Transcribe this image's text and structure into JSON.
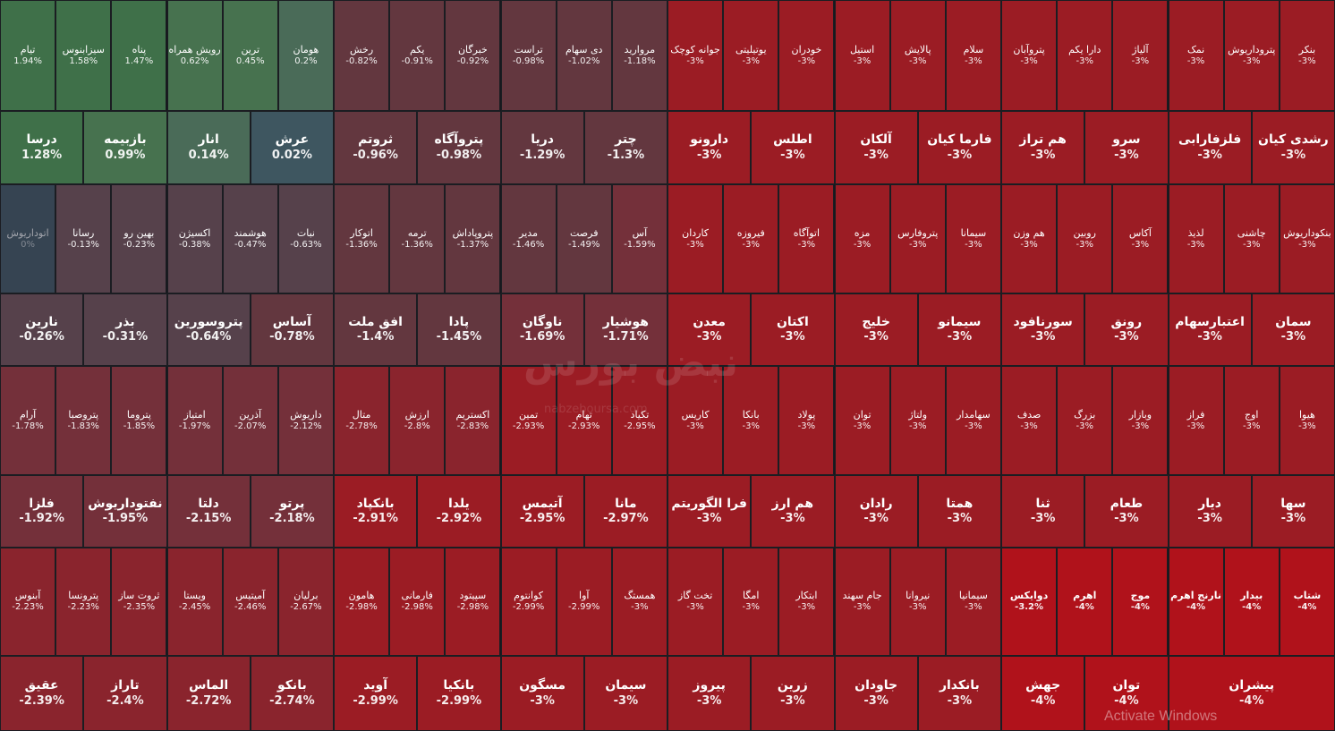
{
  "palette": {
    "gain_strong": "#3f7049",
    "gain_mid": "#47724f",
    "gain_weak": "#4a6b58",
    "gain_flat": "#3e5660",
    "flat": "#364452",
    "loss_light": "#56414b",
    "loss_mild": "#63373f",
    "loss_mid": "#74303a",
    "loss_deep": "#8a242d",
    "loss_max": "#9b1c24",
    "loss_extreme": "#b0121b",
    "text_light": "#ffffff",
    "text_dim": "#a0a3ab"
  },
  "watermark": {
    "brand": "نبض بورس",
    "site": "nabzeboursa.com"
  },
  "os_notice": "Activate Windows",
  "rows": [
    {
      "size": "sm",
      "tiles": [
        {
          "name": "بنکر",
          "pct": "-3%"
        },
        {
          "name": "پتروداریوش",
          "pct": "-3%"
        },
        {
          "name": "نمک",
          "pct": "-3%"
        },
        {
          "name": "آلیاژ",
          "pct": "-3%"
        },
        {
          "name": "دارا یکم",
          "pct": "-3%"
        },
        {
          "name": "پتروآبان",
          "pct": "-3%"
        },
        {
          "name": "سلام",
          "pct": "-3%"
        },
        {
          "name": "پالایش",
          "pct": "-3%"
        },
        {
          "name": "استیل",
          "pct": "-3%"
        },
        {
          "name": "خودران",
          "pct": "-3%"
        },
        {
          "name": "یوتیلیتی",
          "pct": "-3%"
        },
        {
          "name": "جوانه کوچک",
          "pct": "-3%"
        },
        {
          "name": "مرواريد",
          "pct": "-1.18%"
        },
        {
          "name": "دی سهام",
          "pct": "-1.02%"
        },
        {
          "name": "تراست",
          "pct": "-0.98%"
        },
        {
          "name": "خبرگان",
          "pct": "-0.92%"
        },
        {
          "name": "یکم",
          "pct": "-0.91%"
        },
        {
          "name": "رخش",
          "pct": "-0.82%"
        },
        {
          "name": "هومان",
          "pct": "0.2%"
        },
        {
          "name": "ترین",
          "pct": "0.45%"
        },
        {
          "name": "رویش همراه",
          "pct": "0.62%"
        },
        {
          "name": "پناه",
          "pct": "1.47%"
        },
        {
          "name": "سیزابنوس",
          "pct": "1.58%"
        },
        {
          "name": "تیام",
          "pct": "1.94%"
        }
      ]
    },
    {
      "size": "lg",
      "tiles": [
        {
          "name": "رشدی کیان",
          "pct": "-3%"
        },
        {
          "name": "فلزفارابی",
          "pct": "-3%"
        },
        {
          "name": "سرو",
          "pct": "-3%"
        },
        {
          "name": "هم تراز",
          "pct": "-3%"
        },
        {
          "name": "فارما کیان",
          "pct": "-3%"
        },
        {
          "name": "آلکان",
          "pct": "-3%"
        },
        {
          "name": "اطلس",
          "pct": "-3%"
        },
        {
          "name": "دارونو",
          "pct": "-3%"
        },
        {
          "name": "چتر",
          "pct": "-1.3%"
        },
        {
          "name": "دریا",
          "pct": "-1.29%"
        },
        {
          "name": "پتروآگاه",
          "pct": "-0.98%"
        },
        {
          "name": "ثروتم",
          "pct": "-0.96%"
        },
        {
          "name": "عرش",
          "pct": "0.02%"
        },
        {
          "name": "انار",
          "pct": "0.14%"
        },
        {
          "name": "بازبیمه",
          "pct": "0.99%"
        },
        {
          "name": "درسا",
          "pct": "1.28%"
        }
      ]
    },
    {
      "size": "sm",
      "tiles": [
        {
          "name": "بنکوداریوش",
          "pct": "-3%"
        },
        {
          "name": "چاشنی",
          "pct": "-3%"
        },
        {
          "name": "لذیذ",
          "pct": "-3%"
        },
        {
          "name": "آکاس",
          "pct": "-3%"
        },
        {
          "name": "روبین",
          "pct": "-3%"
        },
        {
          "name": "هم وزن",
          "pct": "-3%"
        },
        {
          "name": "سیمانا",
          "pct": "-3%"
        },
        {
          "name": "پتروفارس",
          "pct": "-3%"
        },
        {
          "name": "مزه",
          "pct": "-3%"
        },
        {
          "name": "اتوآگاه",
          "pct": "-3%"
        },
        {
          "name": "فیروزه",
          "pct": "-3%"
        },
        {
          "name": "کاردان",
          "pct": "-3%"
        },
        {
          "name": "آس",
          "pct": "-1.59%"
        },
        {
          "name": "فرصت",
          "pct": "-1.49%"
        },
        {
          "name": "مدیر",
          "pct": "-1.46%"
        },
        {
          "name": "پتروپاداش",
          "pct": "-1.37%"
        },
        {
          "name": "ترمه",
          "pct": "-1.36%"
        },
        {
          "name": "اتوکار",
          "pct": "-1.36%"
        },
        {
          "name": "نبات",
          "pct": "-0.63%"
        },
        {
          "name": "هوشمند",
          "pct": "-0.47%"
        },
        {
          "name": "اکسیژن",
          "pct": "-0.38%"
        },
        {
          "name": "بهین رو",
          "pct": "-0.23%"
        },
        {
          "name": "رسانا",
          "pct": "-0.13%"
        },
        {
          "name": "اتوداریوش",
          "pct": "0%"
        }
      ]
    },
    {
      "size": "lg",
      "tiles": [
        {
          "name": "سمان",
          "pct": "-3%"
        },
        {
          "name": "اعتبارسهام",
          "pct": "-3%"
        },
        {
          "name": "رونق",
          "pct": "-3%"
        },
        {
          "name": "سورنافود",
          "pct": "-3%"
        },
        {
          "name": "سیمانو",
          "pct": "-3%"
        },
        {
          "name": "خلیج",
          "pct": "-3%"
        },
        {
          "name": "اکتان",
          "pct": "-3%"
        },
        {
          "name": "معدن",
          "pct": "-3%"
        },
        {
          "name": "هوشیار",
          "pct": "-1.71%"
        },
        {
          "name": "ناوگان",
          "pct": "-1.69%"
        },
        {
          "name": "پادا",
          "pct": "-1.45%"
        },
        {
          "name": "افق ملت",
          "pct": "-1.4%"
        },
        {
          "name": "آساس",
          "pct": "-0.78%"
        },
        {
          "name": "پتروسورین",
          "pct": "-0.64%"
        },
        {
          "name": "بذر",
          "pct": "-0.31%"
        },
        {
          "name": "نارین",
          "pct": "-0.26%"
        }
      ]
    },
    {
      "size": "sm",
      "tiles": [
        {
          "name": "هیوا",
          "pct": "-3%"
        },
        {
          "name": "اوج",
          "pct": "-3%"
        },
        {
          "name": "فراز",
          "pct": "-3%"
        },
        {
          "name": "وبازار",
          "pct": "-3%"
        },
        {
          "name": "بزرگ",
          "pct": "-3%"
        },
        {
          "name": "صدف",
          "pct": "-3%"
        },
        {
          "name": "سهامدار",
          "pct": "-3%"
        },
        {
          "name": "ولتاژ",
          "pct": "-3%"
        },
        {
          "name": "توان",
          "pct": "-3%"
        },
        {
          "name": "پولاد",
          "pct": "-3%"
        },
        {
          "name": "بانکا",
          "pct": "-3%"
        },
        {
          "name": "کاریس",
          "pct": "-3%"
        },
        {
          "name": "تکیاد",
          "pct": "-2.95%"
        },
        {
          "name": "تهام",
          "pct": "-2.93%"
        },
        {
          "name": "تمین",
          "pct": "-2.93%"
        },
        {
          "name": "اکستریم",
          "pct": "-2.83%"
        },
        {
          "name": "ارزش",
          "pct": "-2.8%"
        },
        {
          "name": "متال",
          "pct": "-2.78%"
        },
        {
          "name": "داریوش",
          "pct": "-2.12%"
        },
        {
          "name": "آذرین",
          "pct": "-2.07%"
        },
        {
          "name": "امتیاز",
          "pct": "-1.97%"
        },
        {
          "name": "پتروما",
          "pct": "-1.85%"
        },
        {
          "name": "پتروصبا",
          "pct": "-1.83%"
        },
        {
          "name": "آرام",
          "pct": "-1.78%"
        }
      ]
    },
    {
      "size": "lg",
      "tiles": [
        {
          "name": "سها",
          "pct": "-3%"
        },
        {
          "name": "دیار",
          "pct": "-3%"
        },
        {
          "name": "طعام",
          "pct": "-3%"
        },
        {
          "name": "ثنا",
          "pct": "-3%"
        },
        {
          "name": "همتا",
          "pct": "-3%"
        },
        {
          "name": "رادان",
          "pct": "-3%"
        },
        {
          "name": "هم ارز",
          "pct": "-3%"
        },
        {
          "name": "فرا الگوریتم",
          "pct": "-3%"
        },
        {
          "name": "مانا",
          "pct": "-2.97%"
        },
        {
          "name": "آتیمس",
          "pct": "-2.95%"
        },
        {
          "name": "یلدا",
          "pct": "-2.92%"
        },
        {
          "name": "بانکپاد",
          "pct": "-2.91%"
        },
        {
          "name": "پرتو",
          "pct": "-2.18%"
        },
        {
          "name": "دلتا",
          "pct": "-2.15%"
        },
        {
          "name": "نفتوداریوش",
          "pct": "-1.95%"
        },
        {
          "name": "فلزا",
          "pct": "-1.92%"
        }
      ]
    },
    {
      "size": "sm",
      "tiles": [
        {
          "name": "شتاب",
          "pct": "-4%"
        },
        {
          "name": "بیدار",
          "pct": "-4%"
        },
        {
          "name": "نارنج اهرم",
          "pct": "-4%"
        },
        {
          "name": "موج",
          "pct": "-4%"
        },
        {
          "name": "اهرم",
          "pct": "-4%"
        },
        {
          "name": "دوایکس",
          "pct": "-3.2%"
        },
        {
          "name": "سیمانیا",
          "pct": "-3%"
        },
        {
          "name": "نیروانا",
          "pct": "-3%"
        },
        {
          "name": "جام سهند",
          "pct": "-3%"
        },
        {
          "name": "ابتکار",
          "pct": "-3%"
        },
        {
          "name": "امگا",
          "pct": "-3%"
        },
        {
          "name": "تخت گاز",
          "pct": "-3%"
        },
        {
          "name": "همستگ",
          "pct": "-3%"
        },
        {
          "name": "آوا",
          "pct": "-2.99%"
        },
        {
          "name": "کوانتوم",
          "pct": "-2.99%"
        },
        {
          "name": "سپیتود",
          "pct": "-2.98%"
        },
        {
          "name": "فارمانی",
          "pct": "-2.98%"
        },
        {
          "name": "هامون",
          "pct": "-2.98%"
        },
        {
          "name": "برلیان",
          "pct": "-2.67%"
        },
        {
          "name": "آمیتیس",
          "pct": "-2.46%"
        },
        {
          "name": "ویستا",
          "pct": "-2.45%"
        },
        {
          "name": "ثروت ساز",
          "pct": "-2.35%"
        },
        {
          "name": "پترونسا",
          "pct": "-2.23%"
        },
        {
          "name": "آبنوس",
          "pct": "-2.23%"
        }
      ]
    },
    {
      "size": "lg",
      "tiles": [
        {
          "name": "پیشران",
          "pct": "-4%",
          "span": 2
        },
        {
          "name": "توان",
          "pct": "-4%"
        },
        {
          "name": "جهش",
          "pct": "-4%"
        },
        {
          "name": "بانکدار",
          "pct": "-3%"
        },
        {
          "name": "جاودان",
          "pct": "-3%"
        },
        {
          "name": "زرین",
          "pct": "-3%"
        },
        {
          "name": "پیروز",
          "pct": "-3%"
        },
        {
          "name": "سیمان",
          "pct": "-3%"
        },
        {
          "name": "مسگون",
          "pct": "-3%"
        },
        {
          "name": "بانکیا",
          "pct": "-2.99%"
        },
        {
          "name": "آوید",
          "pct": "-2.99%"
        },
        {
          "name": "بانکو",
          "pct": "-2.74%"
        },
        {
          "name": "الماس",
          "pct": "-2.72%"
        },
        {
          "name": "تاراز",
          "pct": "-2.4%"
        },
        {
          "name": "عقیق",
          "pct": "-2.39%"
        }
      ]
    }
  ]
}
